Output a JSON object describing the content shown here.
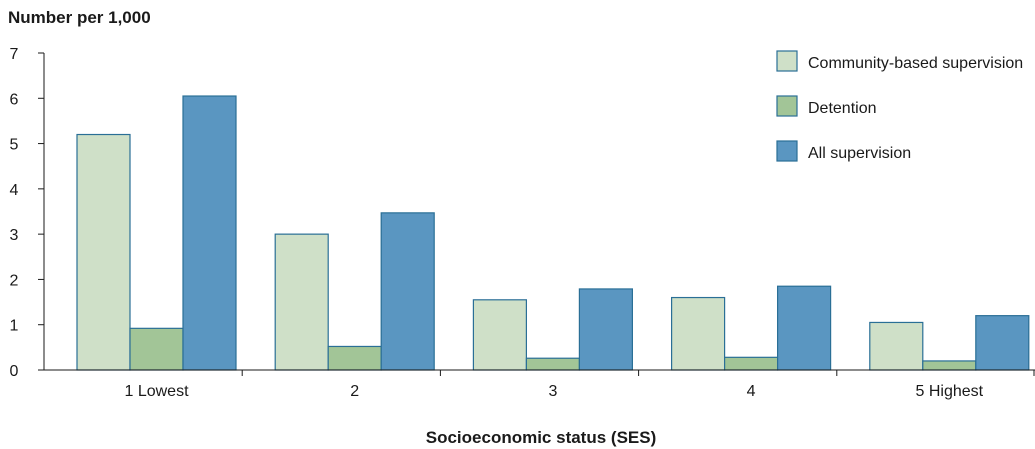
{
  "chart_data": {
    "type": "bar",
    "ylabel": "Number per 1,000",
    "xlabel": "Socioeconomic status (SES)",
    "categories": [
      "1 Lowest",
      "2",
      "3",
      "4",
      "5 Highest"
    ],
    "ylim": [
      0,
      7
    ],
    "yticks": [
      "0",
      "1",
      "2",
      "3",
      "4",
      "5",
      "6",
      "7"
    ],
    "grid": false,
    "legend_position": "top-right",
    "series": [
      {
        "name": "Community-based supervision",
        "color": "#cfe0c8",
        "values": [
          5.2,
          3.0,
          1.55,
          1.6,
          1.05
        ]
      },
      {
        "name": "Detention",
        "color": "#a2c597",
        "values": [
          0.92,
          0.52,
          0.26,
          0.28,
          0.2
        ]
      },
      {
        "name": "All supervision",
        "color": "#5a96c1",
        "values": [
          6.05,
          3.47,
          1.79,
          1.85,
          1.2
        ]
      }
    ]
  }
}
